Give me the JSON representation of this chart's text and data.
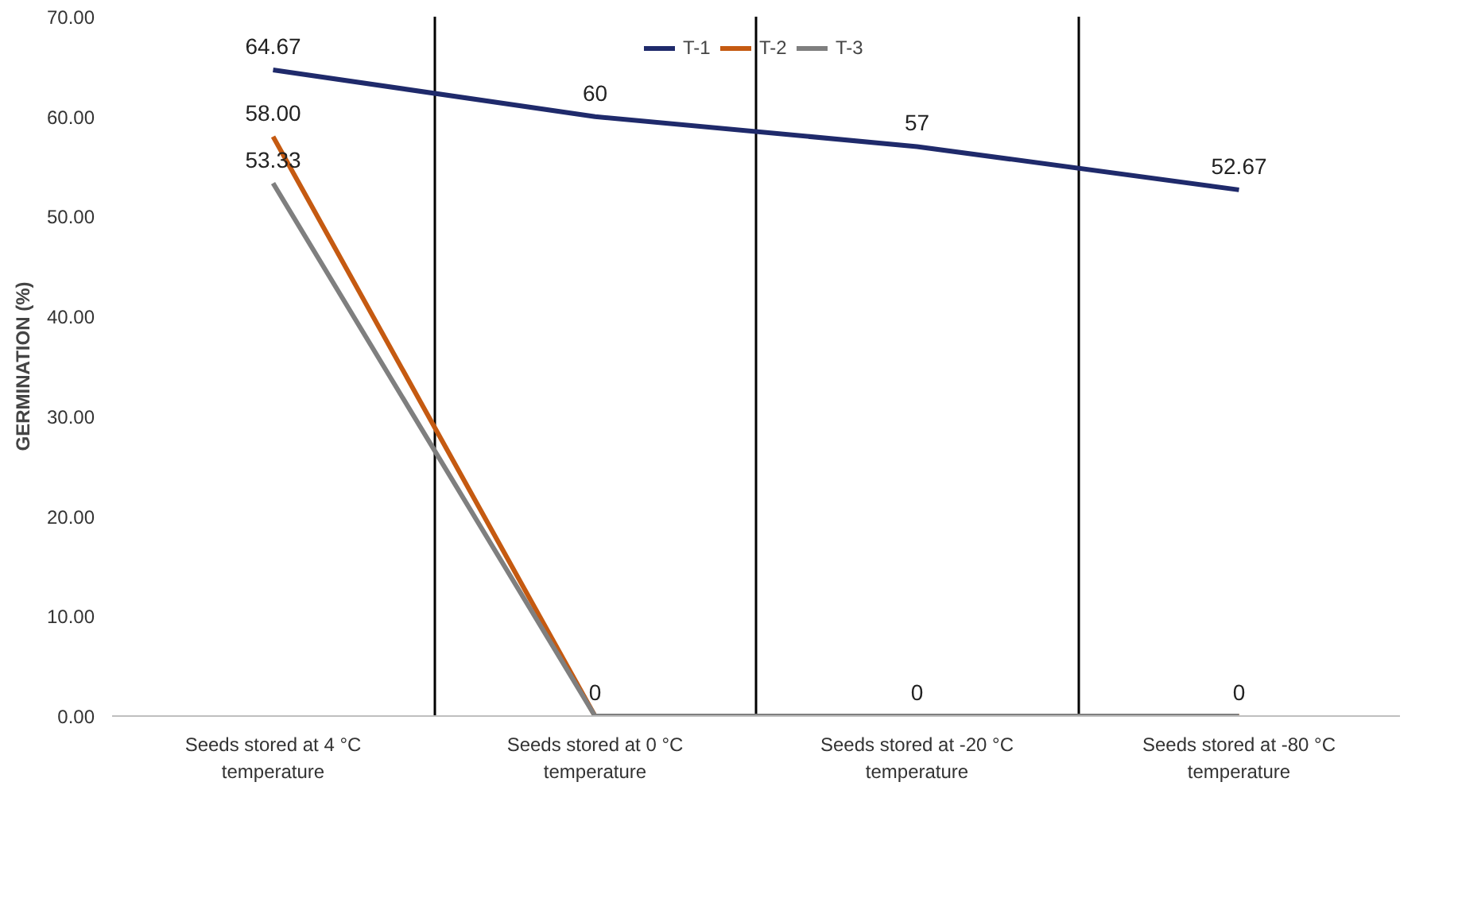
{
  "chart_data": {
    "type": "line",
    "ylabel": "GERMINATION (%)",
    "categories": [
      "Seeds stored at 4 °C temperature",
      "Seeds stored at 0 °C temperature",
      "Seeds stored at -20 °C temperature",
      "Seeds stored at -80 °C temperature"
    ],
    "series": [
      {
        "name": "T-1",
        "color": "#1f2a6b",
        "values": [
          64.67,
          60,
          57,
          52.67
        ],
        "value_labels": [
          "64.67",
          "60",
          "57",
          "52.67"
        ]
      },
      {
        "name": "T-2",
        "color": "#c55a11",
        "values": [
          58,
          0,
          0,
          0
        ],
        "value_labels": [
          "58.00",
          null,
          null,
          null
        ]
      },
      {
        "name": "T-3",
        "color": "#7f7f7f",
        "values": [
          53.33,
          0,
          0,
          0
        ],
        "value_labels": [
          "53.33",
          "0",
          "0",
          "0"
        ]
      }
    ],
    "ylim": [
      0,
      70
    ],
    "yticks": [
      {
        "value": 0,
        "label": "0.00"
      },
      {
        "value": 10,
        "label": "10.00"
      },
      {
        "value": 20,
        "label": "20.00"
      },
      {
        "value": 30,
        "label": "30.00"
      },
      {
        "value": 40,
        "label": "40.00"
      },
      {
        "value": 50,
        "label": "50.00"
      },
      {
        "value": 60,
        "label": "60.00"
      },
      {
        "value": 70,
        "label": "70.00"
      }
    ],
    "grid": "x",
    "legend": "top",
    "marker": "none",
    "line_style": "solid"
  }
}
